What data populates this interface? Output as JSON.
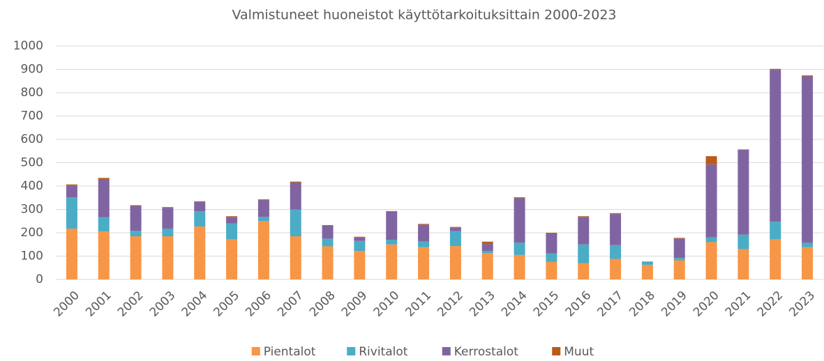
{
  "chart_data": {
    "type": "stacked_bar",
    "title": "Valmistuneet huoneistot käyttötarkoituksittain 2000-2023",
    "categories": [
      "2000",
      "2001",
      "2002",
      "2003",
      "2004",
      "2005",
      "2006",
      "2007",
      "2008",
      "2009",
      "2010",
      "2011",
      "2012",
      "2013",
      "2014",
      "2015",
      "2016",
      "2017",
      "2018",
      "2019",
      "2020",
      "2021",
      "2022",
      "2023"
    ],
    "series": [
      {
        "name": "Pientalot",
        "color": "#f79646",
        "values": [
          218,
          205,
          185,
          185,
          227,
          172,
          250,
          185,
          142,
          122,
          150,
          138,
          143,
          113,
          105,
          75,
          70,
          88,
          63,
          82,
          160,
          130,
          172,
          138
        ]
      },
      {
        "name": "Rivitalot",
        "color": "#4bacc6",
        "values": [
          134,
          62,
          23,
          33,
          65,
          68,
          18,
          115,
          33,
          43,
          20,
          25,
          64,
          9,
          53,
          37,
          80,
          59,
          14,
          10,
          20,
          62,
          75,
          19
        ]
      },
      {
        "name": "Kerrostalot",
        "color": "#8064a2",
        "values": [
          50,
          163,
          107,
          89,
          40,
          28,
          72,
          115,
          55,
          15,
          120,
          72,
          15,
          30,
          190,
          85,
          118,
          133,
          0,
          83,
          313,
          363,
          651,
          713
        ]
      },
      {
        "name": "Muut",
        "color": "#b85c1a",
        "values": [
          5,
          5,
          3,
          3,
          3,
          3,
          3,
          4,
          3,
          3,
          3,
          3,
          3,
          10,
          4,
          3,
          3,
          4,
          0,
          3,
          35,
          2,
          4,
          4
        ]
      }
    ],
    "ylim": [
      0,
      1000
    ],
    "yticks": [
      0,
      100,
      200,
      300,
      400,
      500,
      600,
      700,
      800,
      900,
      1000
    ],
    "grid": true,
    "legend": "bottom"
  }
}
